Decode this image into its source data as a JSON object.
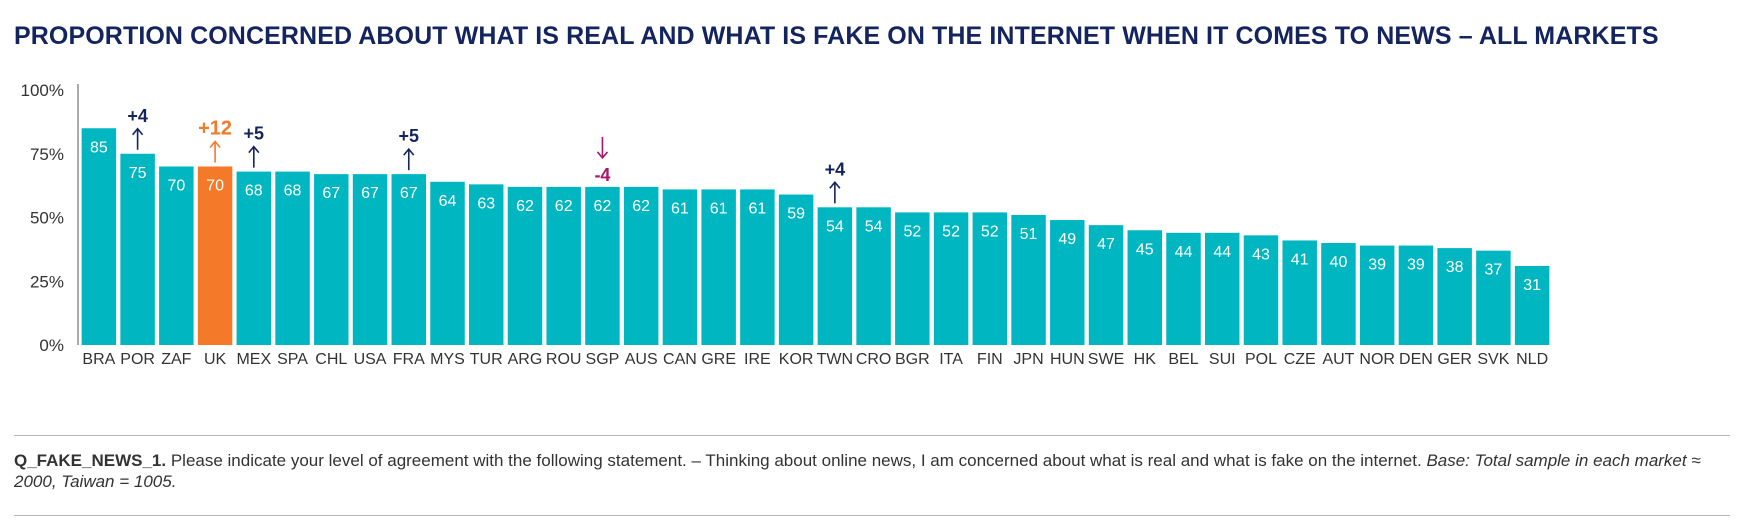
{
  "chart_data": {
    "type": "bar",
    "title": "PROPORTION CONCERNED ABOUT WHAT IS REAL AND WHAT IS FAKE ON THE INTERNET WHEN IT COMES TO NEWS – ALL MARKETS",
    "xlabel": "",
    "ylabel": "",
    "ylim": [
      0,
      100
    ],
    "yticks": [
      {
        "value": 0,
        "label": "0%"
      },
      {
        "value": 25,
        "label": "25%"
      },
      {
        "value": 50,
        "label": "50%"
      },
      {
        "value": 75,
        "label": "75%"
      },
      {
        "value": 100,
        "label": "100%"
      }
    ],
    "grid": false,
    "categories": [
      "BRA",
      "POR",
      "ZAF",
      "UK",
      "MEX",
      "SPA",
      "CHL",
      "USA",
      "FRA",
      "MYS",
      "TUR",
      "ARG",
      "ROU",
      "SGP",
      "AUS",
      "CAN",
      "GRE",
      "IRE",
      "KOR",
      "TWN",
      "CRO",
      "BGR",
      "ITA",
      "FIN",
      "JPN",
      "HUN",
      "SWE",
      "HK",
      "BEL",
      "SUI",
      "POL",
      "CZE",
      "AUT",
      "NOR",
      "DEN",
      "GER",
      "SVK",
      "NLD"
    ],
    "values": [
      85,
      75,
      70,
      70,
      68,
      68,
      67,
      67,
      67,
      64,
      63,
      62,
      62,
      62,
      62,
      61,
      61,
      61,
      59,
      54,
      54,
      52,
      52,
      52,
      51,
      49,
      47,
      45,
      44,
      44,
      43,
      41,
      40,
      39,
      39,
      38,
      37,
      31
    ],
    "highlight": "UK",
    "colors": {
      "bar": "#00b6c0",
      "highlight_bar": "#f47a2a",
      "up_change": "#13245e",
      "down_change": "#a8156b",
      "highlight_change": "#f47a2a",
      "axis": "#555555"
    },
    "annotations": [
      {
        "category": "POR",
        "text": "+4",
        "direction": "up"
      },
      {
        "category": "UK",
        "text": "+12",
        "direction": "up"
      },
      {
        "category": "MEX",
        "text": "+5",
        "direction": "up"
      },
      {
        "category": "FRA",
        "text": "+5",
        "direction": "up"
      },
      {
        "category": "SGP",
        "text": "-4",
        "direction": "down"
      },
      {
        "category": "TWN",
        "text": "+4",
        "direction": "up"
      }
    ]
  },
  "footnote": {
    "question": "Q_FAKE_NEWS_1.",
    "text": " Please indicate your level of agreement with the following statement. – Thinking about online news, I am concerned about what is real and what is fake on the internet. ",
    "base": "Base: Total sample in each market ≈ 2000, Taiwan = 1005."
  }
}
